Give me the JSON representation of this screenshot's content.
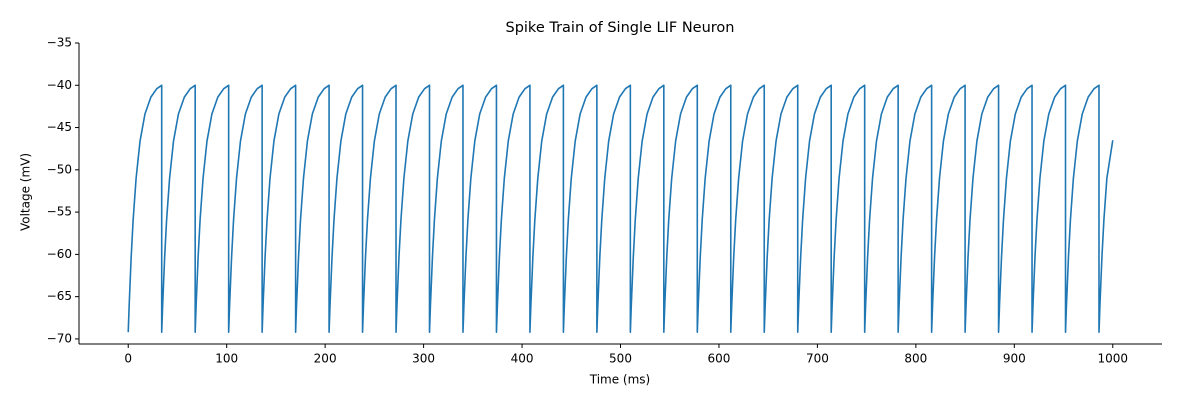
{
  "chart_data": {
    "type": "line",
    "title": "Spike Train of Single LIF Neuron",
    "xlabel": "Time (ms)",
    "ylabel": "Voltage (mV)",
    "color": "#1f77b4",
    "x": [
      0,
      1,
      3,
      5,
      8,
      12,
      17,
      23,
      29,
      34,
      34,
      35,
      37,
      39,
      42,
      46,
      51,
      57,
      63,
      68,
      68,
      69,
      71,
      73,
      76,
      80,
      85,
      91,
      97,
      102,
      102,
      103,
      105,
      107,
      110,
      114,
      119,
      125,
      131,
      136,
      136,
      137,
      139,
      141,
      144,
      148,
      153,
      159,
      165,
      170,
      170,
      171,
      173,
      175,
      178,
      182,
      187,
      193,
      199,
      204,
      204,
      205,
      207,
      209,
      212,
      216,
      221,
      227,
      233,
      238,
      238,
      239,
      241,
      243,
      246,
      250,
      255,
      261,
      267,
      272,
      272,
      273,
      275,
      277,
      280,
      284,
      289,
      295,
      301,
      306,
      306,
      307,
      309,
      311,
      314,
      318,
      323,
      329,
      335,
      340,
      340,
      341,
      343,
      345,
      348,
      352,
      357,
      363,
      369,
      374,
      374,
      375,
      377,
      379,
      382,
      386,
      391,
      397,
      403,
      408,
      408,
      409,
      411,
      413,
      416,
      420,
      425,
      431,
      437,
      442,
      442,
      443,
      445,
      447,
      450,
      454,
      459,
      465,
      471,
      476,
      476,
      477,
      479,
      481,
      484,
      488,
      493,
      499,
      505,
      510,
      510,
      511,
      513,
      515,
      518,
      522,
      527,
      533,
      539,
      544,
      544,
      545,
      547,
      549,
      552,
      556,
      561,
      567,
      573,
      578,
      578,
      579,
      581,
      583,
      586,
      590,
      595,
      601,
      607,
      612,
      612,
      613,
      615,
      617,
      620,
      624,
      629,
      635,
      641,
      646,
      646,
      647,
      649,
      651,
      654,
      658,
      663,
      669,
      675,
      680,
      680,
      681,
      683,
      685,
      688,
      692,
      697,
      703,
      709,
      714,
      714,
      715,
      717,
      719,
      722,
      726,
      731,
      737,
      743,
      748,
      748,
      749,
      751,
      753,
      756,
      760,
      765,
      771,
      777,
      782,
      782,
      783,
      785,
      787,
      790,
      794,
      799,
      805,
      811,
      816,
      816,
      817,
      819,
      821,
      824,
      828,
      833,
      839,
      845,
      850,
      850,
      851,
      853,
      855,
      858,
      862,
      867,
      873,
      879,
      884,
      884,
      885,
      887,
      889,
      892,
      896,
      901,
      907,
      913,
      918,
      918,
      919,
      921,
      923,
      926,
      930,
      935,
      941,
      947,
      952,
      952,
      953,
      955,
      957,
      960,
      964,
      969,
      975,
      981,
      986,
      986,
      987,
      989,
      991,
      994,
      1000
    ],
    "values": [
      -69.2,
      -65.9,
      -60.3,
      -55.9,
      -51.0,
      -46.6,
      -43.4,
      -41.4,
      -40.4,
      -40.0,
      -69.2,
      -65.9,
      -60.3,
      -55.9,
      -51.0,
      -46.6,
      -43.4,
      -41.4,
      -40.4,
      -40.0,
      -69.2,
      -65.9,
      -60.3,
      -55.9,
      -51.0,
      -46.6,
      -43.4,
      -41.4,
      -40.4,
      -40.0,
      -69.2,
      -65.9,
      -60.3,
      -55.9,
      -51.0,
      -46.6,
      -43.4,
      -41.4,
      -40.4,
      -40.0,
      -69.2,
      -65.9,
      -60.3,
      -55.9,
      -51.0,
      -46.6,
      -43.4,
      -41.4,
      -40.4,
      -40.0,
      -69.2,
      -65.9,
      -60.3,
      -55.9,
      -51.0,
      -46.6,
      -43.4,
      -41.4,
      -40.4,
      -40.0,
      -69.2,
      -65.9,
      -60.3,
      -55.9,
      -51.0,
      -46.6,
      -43.4,
      -41.4,
      -40.4,
      -40.0,
      -69.2,
      -65.9,
      -60.3,
      -55.9,
      -51.0,
      -46.6,
      -43.4,
      -41.4,
      -40.4,
      -40.0,
      -69.2,
      -65.9,
      -60.3,
      -55.9,
      -51.0,
      -46.6,
      -43.4,
      -41.4,
      -40.4,
      -40.0,
      -69.2,
      -65.9,
      -60.3,
      -55.9,
      -51.0,
      -46.6,
      -43.4,
      -41.4,
      -40.4,
      -40.0,
      -69.2,
      -65.9,
      -60.3,
      -55.9,
      -51.0,
      -46.6,
      -43.4,
      -41.4,
      -40.4,
      -40.0,
      -69.2,
      -65.9,
      -60.3,
      -55.9,
      -51.0,
      -46.6,
      -43.4,
      -41.4,
      -40.4,
      -40.0,
      -69.2,
      -65.9,
      -60.3,
      -55.9,
      -51.0,
      -46.6,
      -43.4,
      -41.4,
      -40.4,
      -40.0,
      -69.2,
      -65.9,
      -60.3,
      -55.9,
      -51.0,
      -46.6,
      -43.4,
      -41.4,
      -40.4,
      -40.0,
      -69.2,
      -65.9,
      -60.3,
      -55.9,
      -51.0,
      -46.6,
      -43.4,
      -41.4,
      -40.4,
      -40.0,
      -69.2,
      -65.9,
      -60.3,
      -55.9,
      -51.0,
      -46.6,
      -43.4,
      -41.4,
      -40.4,
      -40.0,
      -69.2,
      -65.9,
      -60.3,
      -55.9,
      -51.0,
      -46.6,
      -43.4,
      -41.4,
      -40.4,
      -40.0,
      -69.2,
      -65.9,
      -60.3,
      -55.9,
      -51.0,
      -46.6,
      -43.4,
      -41.4,
      -40.4,
      -40.0,
      -69.2,
      -65.9,
      -60.3,
      -55.9,
      -51.0,
      -46.6,
      -43.4,
      -41.4,
      -40.4,
      -40.0,
      -69.2,
      -65.9,
      -60.3,
      -55.9,
      -51.0,
      -46.6,
      -43.4,
      -41.4,
      -40.4,
      -40.0,
      -69.2,
      -65.9,
      -60.3,
      -55.9,
      -51.0,
      -46.6,
      -43.4,
      -41.4,
      -40.4,
      -40.0,
      -69.2,
      -65.9,
      -60.3,
      -55.9,
      -51.0,
      -46.6,
      -43.4,
      -41.4,
      -40.4,
      -40.0,
      -69.2,
      -65.9,
      -60.3,
      -55.9,
      -51.0,
      -46.6,
      -43.4,
      -41.4,
      -40.4,
      -40.0,
      -69.2,
      -65.9,
      -60.3,
      -55.9,
      -51.0,
      -46.6,
      -43.4,
      -41.4,
      -40.4,
      -40.0,
      -69.2,
      -65.9,
      -60.3,
      -55.9,
      -51.0,
      -46.6,
      -43.4,
      -41.4,
      -40.4,
      -40.0,
      -69.2,
      -65.9,
      -60.3,
      -55.9,
      -51.0,
      -46.6,
      -43.4,
      -41.4,
      -40.4,
      -40.0,
      -69.2,
      -65.9,
      -60.3,
      -55.9,
      -51.0,
      -46.6,
      -43.4,
      -41.4,
      -40.4,
      -40.0,
      -69.2,
      -65.9,
      -60.3,
      -55.9,
      -51.0,
      -46.6,
      -43.4,
      -41.4,
      -40.4,
      -40.0,
      -69.2,
      -65.9,
      -60.3,
      -55.9,
      -51.0,
      -46.6,
      -43.4,
      -41.4,
      -40.4,
      -40.0,
      -69.2,
      -65.9,
      -60.3,
      -55.9,
      -51.0,
      -46.5
    ],
    "xlim": [
      -50,
      1050
    ],
    "xticks": [
      0,
      100,
      200,
      300,
      400,
      500,
      600,
      700,
      800,
      900,
      1000
    ],
    "ylim": [
      -70.6,
      -35
    ],
    "yticks": [
      {
        "value": -70,
        "label": "−70"
      },
      {
        "value": -65,
        "label": "−65"
      },
      {
        "value": -60,
        "label": "−60"
      },
      {
        "value": -55,
        "label": "−55"
      },
      {
        "value": -50,
        "label": "−50"
      },
      {
        "value": -45,
        "label": "−45"
      },
      {
        "value": -40,
        "label": "−40"
      },
      {
        "value": -35,
        "label": "−35"
      }
    ]
  }
}
